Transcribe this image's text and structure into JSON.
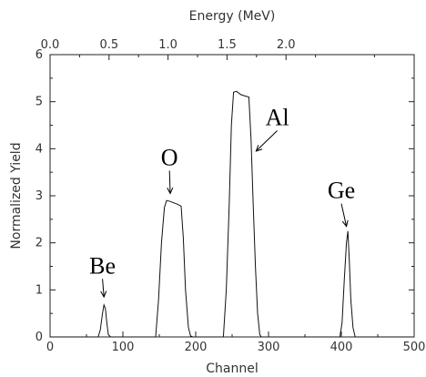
{
  "chart_data": {
    "type": "line",
    "title": "",
    "xlabel": "Channel",
    "ylabel": "Normalized Yield",
    "x2label": "Energy (MeV)",
    "xlim": [
      0,
      500
    ],
    "ylim": [
      0,
      6
    ],
    "x_ticks": [
      0,
      100,
      200,
      300,
      400,
      500
    ],
    "y_ticks": [
      0,
      1,
      2,
      3,
      4,
      5,
      6
    ],
    "x2_ticks": [
      {
        "label": "0.0",
        "channel": 0
      },
      {
        "label": "0.5",
        "channel": 81
      },
      {
        "label": "1.0",
        "channel": 162
      },
      {
        "label": "1.5",
        "channel": 243
      },
      {
        "label": "2.0",
        "channel": 324
      }
    ],
    "grid": false,
    "legend": "none",
    "series": [
      {
        "x": [
          0,
          66,
          69,
          72,
          74,
          76,
          78,
          80,
          83,
          145,
          149,
          153,
          157,
          160,
          165,
          170,
          175,
          180,
          183,
          186,
          190,
          193,
          196,
          238,
          242,
          246,
          249,
          252,
          256,
          262,
          268,
          273,
          276,
          279,
          282,
          285,
          288,
          290,
          398,
          401,
          404,
          407,
          409,
          411,
          413,
          416,
          419,
          500
        ],
        "y": [
          0,
          0,
          0.15,
          0.5,
          0.68,
          0.6,
          0.3,
          0.05,
          0,
          0,
          0.8,
          2.0,
          2.75,
          2.9,
          2.88,
          2.85,
          2.82,
          2.78,
          2.1,
          1.0,
          0.2,
          0.02,
          0,
          0,
          1.0,
          2.8,
          4.5,
          5.2,
          5.22,
          5.15,
          5.12,
          5.1,
          4.2,
          2.8,
          1.5,
          0.5,
          0.05,
          0,
          0,
          0.3,
          1.2,
          2.0,
          2.25,
          1.6,
          0.8,
          0.2,
          0,
          0
        ]
      }
    ],
    "annotations": [
      {
        "text": "Be",
        "x": 72,
        "y": 1.35,
        "arrow_to": [
          74,
          0.85
        ]
      },
      {
        "text": "O",
        "x": 164,
        "y": 3.65,
        "arrow_to": [
          165,
          3.05
        ]
      },
      {
        "text": "Al",
        "x": 312,
        "y": 4.5,
        "arrow_to": [
          283,
          3.95
        ]
      },
      {
        "text": "Ge",
        "x": 400,
        "y": 2.95,
        "arrow_to": [
          407,
          2.35
        ]
      }
    ]
  }
}
